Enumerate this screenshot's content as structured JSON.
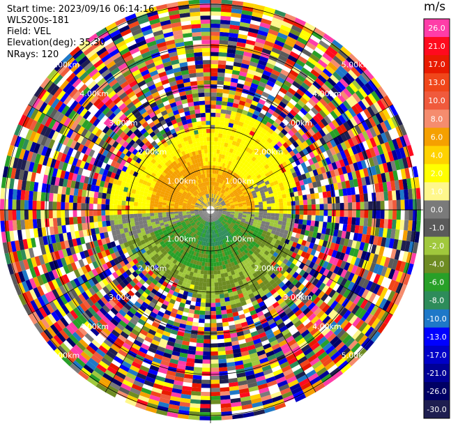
{
  "header": {
    "start_time": "Start time: 2023/09/16 06:14:16",
    "instrument": "WLS200s-181",
    "field": "Field: VEL",
    "elevation": "Elevation(deg): 35.30",
    "nrays": "NRays: 120"
  },
  "colorbar": {
    "unit": "m/s",
    "entries": [
      {
        "label": "26.0",
        "color": "#ff3da8"
      },
      {
        "label": "21.0",
        "color": "#ff0a1e"
      },
      {
        "label": "17.0",
        "color": "#e81a00"
      },
      {
        "label": "13.0",
        "color": "#f0461a"
      },
      {
        "label": "10.0",
        "color": "#f05a3c"
      },
      {
        "label": "8.0",
        "color": "#f58c6e"
      },
      {
        "label": "6.0",
        "color": "#f5a000"
      },
      {
        "label": "4.0",
        "color": "#ffd200"
      },
      {
        "label": "2.0",
        "color": "#ffff00"
      },
      {
        "label": "1.0",
        "color": "#fff78c"
      },
      {
        "label": "0.0",
        "color": "#7a7a7a"
      },
      {
        "label": "-1.0",
        "color": "#5a5a5a"
      },
      {
        "label": "-2.0",
        "color": "#a0c83c"
      },
      {
        "label": "-4.0",
        "color": "#6e8c23"
      },
      {
        "label": "-6.0",
        "color": "#28a028"
      },
      {
        "label": "-8.0",
        "color": "#2d8c5a"
      },
      {
        "label": "-10.0",
        "color": "#1e78c8"
      },
      {
        "label": "-13.0",
        "color": "#0000ff"
      },
      {
        "label": "-17.0",
        "color": "#0000c8"
      },
      {
        "label": "-21.0",
        "color": "#000096"
      },
      {
        "label": "-26.0",
        "color": "#000064"
      },
      {
        "label": "-30.0",
        "color": "#1e1e50"
      }
    ]
  },
  "range_rings": {
    "labels": [
      "1.00km",
      "2.00km",
      "3.00km",
      "4.00km",
      "5.00km"
    ]
  },
  "colors": {
    "background": "#ffffff",
    "grid": "#000000",
    "velocity_toward_pos": "#ffff00",
    "velocity_core_pos": "#f5a000",
    "velocity_zero": "#7a7a7a",
    "velocity_neg": "#6e8c23",
    "velocity_core_neg": "#28a028"
  }
}
